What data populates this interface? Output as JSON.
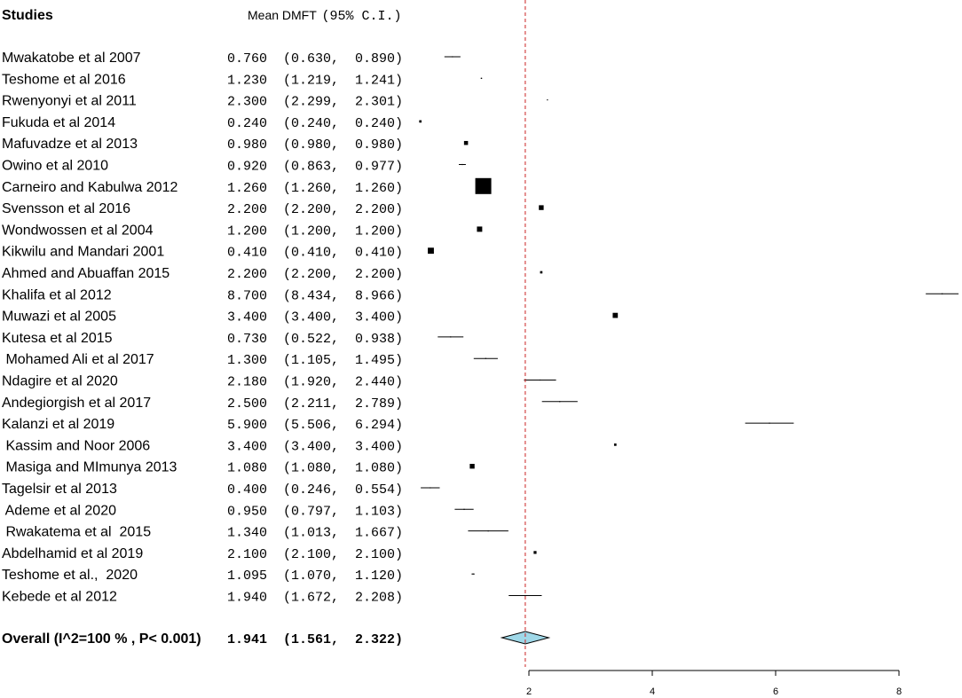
{
  "chart_data": {
    "type": "forest",
    "header": {
      "studies": "Studies",
      "effect": "Mean DMFT",
      "ci": "(95% C.I.)"
    },
    "studies": [
      {
        "name": "Mwakatobe et al 2007",
        "est": 0.76,
        "lo": 0.63,
        "hi": 0.89,
        "text": "0.760  (0.630,  0.890)",
        "weight": 0
      },
      {
        "name": "Teshome et al 2016",
        "est": 1.23,
        "lo": 1.219,
        "hi": 1.241,
        "text": "1.230  (1.219,  1.241)",
        "weight": 0
      },
      {
        "name": "Rwenyonyi et al 2011",
        "est": 2.3,
        "lo": 2.299,
        "hi": 2.301,
        "text": "2.300  (2.299,  2.301)",
        "weight": 0
      },
      {
        "name": "Fukuda et al 2014",
        "est": 0.24,
        "lo": 0.24,
        "hi": 0.24,
        "text": "0.240  (0.240,  0.240)",
        "weight": 0.15
      },
      {
        "name": "Mafuvadze et al 2013",
        "est": 0.98,
        "lo": 0.98,
        "hi": 0.98,
        "text": "0.980  (0.980,  0.980)",
        "weight": 0.25
      },
      {
        "name": "Owino et al 2010",
        "est": 0.92,
        "lo": 0.863,
        "hi": 0.977,
        "text": "0.920  (0.863,  0.977)",
        "weight": 0
      },
      {
        "name": "Carneiro and Kabulwa 2012",
        "est": 1.26,
        "lo": 1.26,
        "hi": 1.26,
        "text": "1.260  (1.260,  1.260)",
        "weight": 1.0
      },
      {
        "name": "Svensson et al 2016",
        "est": 2.2,
        "lo": 2.2,
        "hi": 2.2,
        "text": "2.200  (2.200,  2.200)",
        "weight": 0.3
      },
      {
        "name": "Wondwossen et al 2004",
        "est": 1.2,
        "lo": 1.2,
        "hi": 1.2,
        "text": "1.200  (1.200,  1.200)",
        "weight": 0.33
      },
      {
        "name": "Kikwilu and Mandari 2001",
        "est": 0.41,
        "lo": 0.41,
        "hi": 0.41,
        "text": "0.410  (0.410,  0.410)",
        "weight": 0.38
      },
      {
        "name": "Ahmed and Abuaffan 2015",
        "est": 2.2,
        "lo": 2.2,
        "hi": 2.2,
        "text": "2.200  (2.200,  2.200)",
        "weight": 0.15
      },
      {
        "name": "Khalifa et al 2012",
        "est": 8.7,
        "lo": 8.434,
        "hi": 8.966,
        "text": "8.700  (8.434,  8.966)",
        "weight": 0
      },
      {
        "name": "Muwazi et al 2005",
        "est": 3.4,
        "lo": 3.4,
        "hi": 3.4,
        "text": "3.400  (3.400,  3.400)",
        "weight": 0.32
      },
      {
        "name": "Kutesa et al 2015",
        "est": 0.73,
        "lo": 0.522,
        "hi": 0.938,
        "text": "0.730  (0.522,  0.938)",
        "weight": 0
      },
      {
        "name": " Mohamed Ali et al 2017",
        "est": 1.3,
        "lo": 1.105,
        "hi": 1.495,
        "text": "1.300  (1.105,  1.495)",
        "weight": 0
      },
      {
        "name": "Ndagire et al 2020",
        "est": 2.18,
        "lo": 1.92,
        "hi": 2.44,
        "text": "2.180  (1.920,  2.440)",
        "weight": 0
      },
      {
        "name": "Andegiorgish et al 2017",
        "est": 2.5,
        "lo": 2.211,
        "hi": 2.789,
        "text": "2.500  (2.211,  2.789)",
        "weight": 0
      },
      {
        "name": "Kalanzi et al 2019",
        "est": 5.9,
        "lo": 5.506,
        "hi": 6.294,
        "text": "5.900  (5.506,  6.294)",
        "weight": 0
      },
      {
        "name": " Kassim and Noor 2006",
        "est": 3.4,
        "lo": 3.4,
        "hi": 3.4,
        "text": "3.400  (3.400,  3.400)",
        "weight": 0.15
      },
      {
        "name": " Masiga and MImunya 2013",
        "est": 1.08,
        "lo": 1.08,
        "hi": 1.08,
        "text": "1.080  (1.080,  1.080)",
        "weight": 0.3
      },
      {
        "name": "Tagelsir et al 2013",
        "est": 0.4,
        "lo": 0.246,
        "hi": 0.554,
        "text": "0.400  (0.246,  0.554)",
        "weight": 0
      },
      {
        "name": " Ademe et al 2020",
        "est": 0.95,
        "lo": 0.797,
        "hi": 1.103,
        "text": "0.950  (0.797,  1.103)",
        "weight": 0
      },
      {
        "name": " Rwakatema et al  2015",
        "est": 1.34,
        "lo": 1.013,
        "hi": 1.667,
        "text": "1.340  (1.013,  1.667)",
        "weight": 0
      },
      {
        "name": "Abdelhamid et al 2019",
        "est": 2.1,
        "lo": 2.1,
        "hi": 2.1,
        "text": "2.100  (2.100,  2.100)",
        "weight": 0.18
      },
      {
        "name": "Teshome et al.,  2020",
        "est": 1.095,
        "lo": 1.07,
        "hi": 1.12,
        "text": "1.095  (1.070,  1.120)",
        "weight": 0
      },
      {
        "name": "Kebede et al 2012",
        "est": 1.94,
        "lo": 1.672,
        "hi": 2.208,
        "text": "1.940  (1.672,  2.208)",
        "weight": 0
      }
    ],
    "overall": {
      "label": "Overall (I^2=100 % , P< 0.001)",
      "est": 1.941,
      "lo": 1.561,
      "hi": 2.322,
      "text": "1.941  (1.561,  2.322)"
    },
    "xticks": [
      2,
      4,
      6,
      8
    ],
    "xlim": [
      0.2,
      8.9
    ],
    "reference_line": 1.941,
    "colors": {
      "reference_line": "#cc2222",
      "diamond_fill": "#9fd8e8",
      "mark": "#000000"
    }
  }
}
